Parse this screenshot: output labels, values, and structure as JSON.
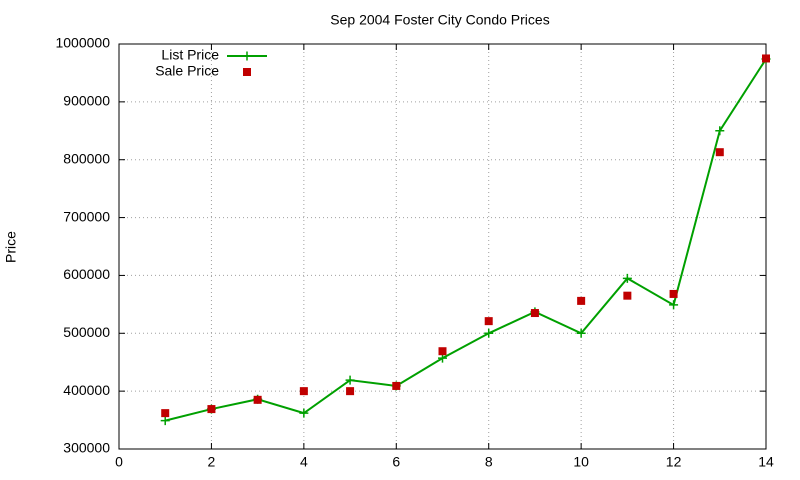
{
  "chart_data": {
    "type": "line",
    "title": "Sep 2004 Foster City Condo Prices",
    "ylabel": "Price",
    "x": [
      1,
      2,
      3,
      4,
      5,
      6,
      7,
      8,
      9,
      10,
      11,
      12,
      13,
      14
    ],
    "series": [
      {
        "name": "List Price",
        "color": "#00a000",
        "line": true,
        "marker": "plus",
        "values": [
          349000,
          369000,
          386000,
          362000,
          419000,
          409000,
          457000,
          500000,
          537000,
          500000,
          595000,
          549000,
          850000,
          974000
        ]
      },
      {
        "name": "Sale Price",
        "color": "#c00000",
        "line": false,
        "marker": "square",
        "values": [
          362000,
          369000,
          385000,
          400000,
          400000,
          409000,
          469000,
          521000,
          535000,
          556000,
          565000,
          568000,
          813000,
          975000
        ]
      }
    ],
    "xlim": [
      0,
      14
    ],
    "xticks": [
      0,
      2,
      4,
      6,
      8,
      10,
      12,
      14
    ],
    "ylim": [
      300000,
      1000000
    ],
    "yticks": [
      300000,
      400000,
      500000,
      600000,
      700000,
      800000,
      900000,
      1000000
    ],
    "grid": true,
    "legend": "top-left"
  }
}
